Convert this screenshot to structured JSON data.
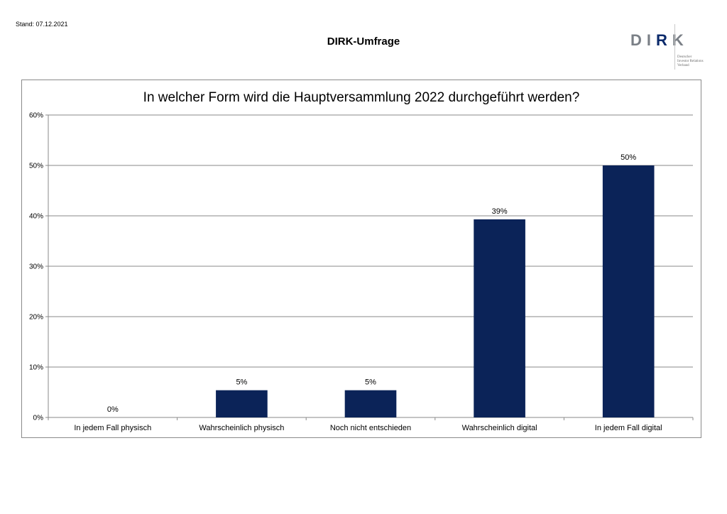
{
  "header": {
    "stand": "Stand: 07.12.2021",
    "title": "DIRK-Umfrage"
  },
  "logo": {
    "letters": [
      "D",
      "I",
      "R",
      "K"
    ],
    "subtitle": "Deutscher\nInvestor Relations\nVerband"
  },
  "colors": {
    "bar": "#0b2358",
    "grid": "#8a8a8a"
  },
  "chart_data": {
    "type": "bar",
    "title": "In welcher Form wird die Hauptversammlung 2022 durchgeführt werden?",
    "categories": [
      "In jedem Fall physisch",
      "Wahrscheinlich physisch",
      "Noch nicht entschieden",
      "Wahrscheinlich digital",
      "In jedem Fall digital"
    ],
    "values": [
      0,
      5.4,
      5.4,
      39.3,
      50
    ],
    "data_labels": [
      "0%",
      "5%",
      "5%",
      "39%",
      "50%"
    ],
    "yticks": [
      "0%",
      "10%",
      "20%",
      "30%",
      "40%",
      "50%",
      "60%"
    ],
    "ylim": [
      0,
      60
    ],
    "xlabel": "",
    "ylabel": "",
    "grid": true,
    "legend": "none"
  }
}
